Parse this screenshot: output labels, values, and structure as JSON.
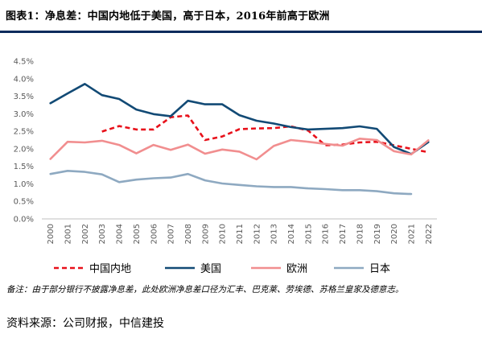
{
  "header": {
    "title": "图表1：净息差：中国内地低于美国，高于日本，2016年前高于欧洲"
  },
  "chart_data": {
    "type": "line",
    "title": "图表1：净息差：中国内地低于美国，高于日本，2016年前高于欧洲",
    "xlabel": "",
    "ylabel": "",
    "ylim": [
      0,
      4.5
    ],
    "yticks": [
      "0.0%",
      "0.5%",
      "1.0%",
      "1.5%",
      "2.0%",
      "2.5%",
      "3.0%",
      "3.5%",
      "4.0%",
      "4.5%"
    ],
    "grid": false,
    "legend_position": "bottom",
    "x": [
      "2000",
      "2001",
      "2002",
      "2003",
      "2004",
      "2005",
      "2006",
      "2007",
      "2008",
      "2009",
      "2010",
      "2011",
      "2012",
      "2013",
      "2014",
      "2015",
      "2016",
      "2017",
      "2018",
      "2019",
      "2020",
      "2021",
      "2022"
    ],
    "series": [
      {
        "name": "中国内地",
        "color": "#e8101a",
        "dash": true,
        "values": [
          null,
          null,
          null,
          2.49,
          2.65,
          2.55,
          2.55,
          2.9,
          2.95,
          2.25,
          2.35,
          2.56,
          2.58,
          2.59,
          2.64,
          2.52,
          2.1,
          2.12,
          2.18,
          2.2,
          2.1,
          2.0,
          1.9
        ]
      },
      {
        "name": "美国",
        "color": "#124a75",
        "dash": false,
        "values": [
          3.3,
          3.58,
          3.85,
          3.53,
          3.42,
          3.12,
          2.99,
          2.93,
          3.37,
          3.27,
          3.27,
          2.96,
          2.8,
          2.72,
          2.62,
          2.55,
          2.57,
          2.59,
          2.64,
          2.57,
          2.05,
          1.85,
          2.19
        ]
      },
      {
        "name": "欧洲",
        "color": "#f18e8f",
        "dash": false,
        "values": [
          1.71,
          2.2,
          2.18,
          2.23,
          2.11,
          1.87,
          2.11,
          1.97,
          2.12,
          1.86,
          1.98,
          1.92,
          1.7,
          2.08,
          2.25,
          2.2,
          2.14,
          2.09,
          2.29,
          2.25,
          1.93,
          1.84,
          2.24
        ]
      },
      {
        "name": "日本",
        "color": "#8ea9c1",
        "dash": false,
        "values": [
          1.28,
          1.37,
          1.34,
          1.27,
          1.05,
          1.12,
          1.16,
          1.18,
          1.28,
          1.1,
          1.01,
          0.97,
          0.93,
          0.91,
          0.91,
          0.87,
          0.85,
          0.82,
          0.82,
          0.79,
          0.73,
          0.71,
          null
        ]
      }
    ]
  },
  "footnote": "备注：由于部分银行不披露净息差，此处欧洲净息差口径为汇丰、巴克莱、劳埃德、苏格兰皇家及德意志。",
  "source": "资料来源：公司财报，中信建投"
}
